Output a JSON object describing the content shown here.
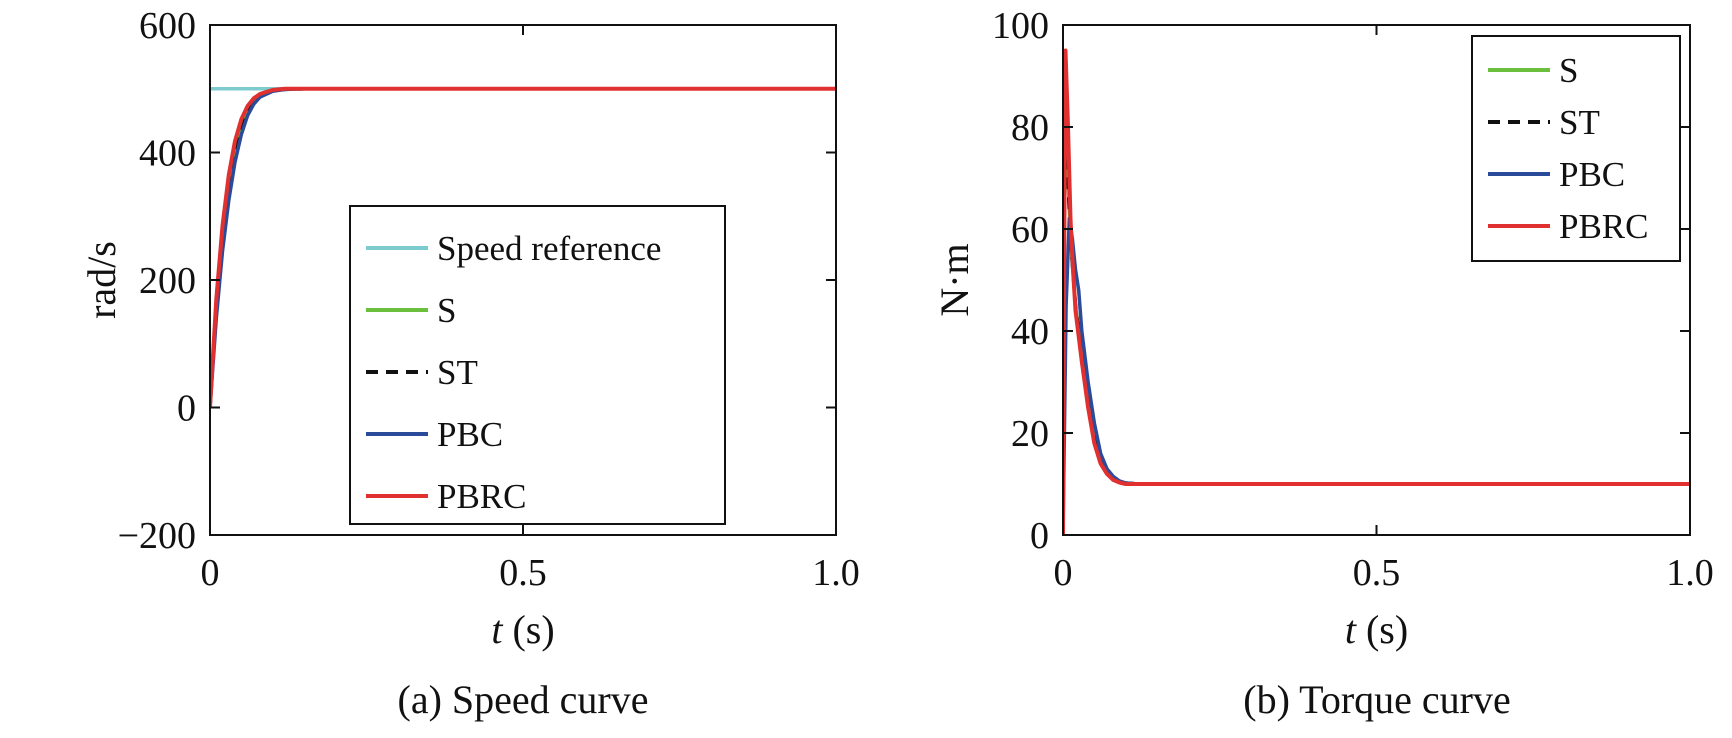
{
  "chart_data": [
    {
      "type": "line",
      "caption": "(a) Speed curve",
      "xlabel_italic": "t",
      "xlabel_rest": " (s)",
      "ylabel": "rad/s",
      "xlim": [
        0,
        1.0
      ],
      "ylim": [
        -200,
        600
      ],
      "xticks": [
        0,
        0.5,
        1.0
      ],
      "xtick_labels": [
        "0",
        "0.5",
        "1.0"
      ],
      "yticks": [
        -200,
        0,
        200,
        400,
        600
      ],
      "ytick_labels": [
        "−200",
        "0",
        "200",
        "400",
        "600"
      ],
      "legend_position": "center-right",
      "series": [
        {
          "name": "Speed reference",
          "color": "#7ecbcf",
          "dash": "solid",
          "x": [
            0,
            0.17
          ],
          "y": [
            500,
            500
          ]
        },
        {
          "name": "S",
          "color": "#6cbf3c",
          "dash": "solid",
          "x": [
            0,
            0.01,
            0.02,
            0.03,
            0.04,
            0.05,
            0.06,
            0.07,
            0.08,
            0.1,
            0.12,
            0.15,
            0.2,
            1.0
          ],
          "y": [
            0,
            160,
            270,
            350,
            405,
            443,
            467,
            481,
            490,
            497,
            499,
            500,
            500,
            500
          ]
        },
        {
          "name": "ST",
          "color": "#111111",
          "dash": "dash",
          "x": [
            0,
            0.01,
            0.02,
            0.03,
            0.04,
            0.05,
            0.06,
            0.07,
            0.08,
            0.1,
            0.12,
            0.15,
            0.2,
            1.0
          ],
          "y": [
            0,
            160,
            270,
            350,
            405,
            443,
            467,
            481,
            490,
            497,
            499,
            500,
            500,
            500
          ]
        },
        {
          "name": "PBC",
          "color": "#2a4a9a",
          "dash": "solid",
          "x": [
            0,
            0.01,
            0.02,
            0.03,
            0.04,
            0.05,
            0.06,
            0.07,
            0.08,
            0.1,
            0.12,
            0.15,
            0.2,
            1.0
          ],
          "y": [
            0,
            140,
            245,
            325,
            385,
            428,
            458,
            476,
            487,
            496,
            499,
            500,
            500,
            500
          ]
        },
        {
          "name": "PBRC",
          "color": "#e03030",
          "dash": "solid",
          "x": [
            0,
            0.01,
            0.02,
            0.03,
            0.04,
            0.05,
            0.06,
            0.07,
            0.08,
            0.1,
            0.12,
            0.15,
            0.2,
            1.0
          ],
          "y": [
            0,
            170,
            285,
            365,
            418,
            452,
            473,
            485,
            492,
            498,
            500,
            500,
            500,
            500
          ]
        }
      ]
    },
    {
      "type": "line",
      "caption": "(b) Torque curve",
      "xlabel_italic": "t",
      "xlabel_rest": " (s)",
      "ylabel": "N·m",
      "xlim": [
        0,
        1.0
      ],
      "ylim": [
        0,
        100
      ],
      "xticks": [
        0,
        0.5,
        1.0
      ],
      "xtick_labels": [
        "0",
        "0.5",
        "1.0"
      ],
      "yticks": [
        0,
        20,
        40,
        60,
        80,
        100
      ],
      "ytick_labels": [
        "0",
        "20",
        "40",
        "60",
        "80",
        "100"
      ],
      "legend_position": "top-right",
      "series": [
        {
          "name": "S",
          "color": "#6cbf3c",
          "dash": "solid",
          "x": [
            0,
            0.003,
            0.008,
            0.012,
            0.02,
            0.03,
            0.04,
            0.05,
            0.06,
            0.07,
            0.08,
            0.09,
            0.1,
            0.12,
            0.15,
            1.0
          ],
          "y": [
            0,
            88,
            70,
            58,
            45,
            35,
            26,
            20,
            15,
            12.5,
            11,
            10.5,
            10.2,
            10,
            10,
            10
          ]
        },
        {
          "name": "ST",
          "color": "#111111",
          "dash": "dash",
          "x": [
            0,
            0.003,
            0.008,
            0.012,
            0.02,
            0.03,
            0.04,
            0.05,
            0.06,
            0.07,
            0.08,
            0.09,
            0.1,
            0.12,
            0.15,
            1.0
          ],
          "y": [
            0,
            88,
            70,
            58,
            45,
            35,
            26,
            20,
            15,
            12.5,
            11,
            10.5,
            10.2,
            10,
            10,
            10
          ]
        },
        {
          "name": "PBC",
          "color": "#2a4a9a",
          "dash": "solid",
          "x": [
            0,
            0.005,
            0.01,
            0.015,
            0.02,
            0.025,
            0.03,
            0.04,
            0.05,
            0.06,
            0.07,
            0.08,
            0.09,
            0.1,
            0.12,
            0.15,
            1.0
          ],
          "y": [
            0,
            45,
            62,
            58,
            52,
            48,
            40,
            30,
            22,
            16,
            13,
            11.5,
            10.6,
            10.2,
            10,
            10,
            10
          ]
        },
        {
          "name": "PBRC",
          "color": "#e03030",
          "dash": "solid",
          "x": [
            0,
            0.002,
            0.004,
            0.008,
            0.012,
            0.016,
            0.02,
            0.03,
            0.04,
            0.05,
            0.06,
            0.07,
            0.08,
            0.09,
            0.1,
            0.12,
            0.15,
            1.0
          ],
          "y": [
            0,
            60,
            95,
            80,
            62,
            52,
            44,
            34,
            25,
            18,
            14,
            12,
            10.8,
            10.3,
            10,
            10,
            10,
            10
          ]
        }
      ]
    }
  ]
}
